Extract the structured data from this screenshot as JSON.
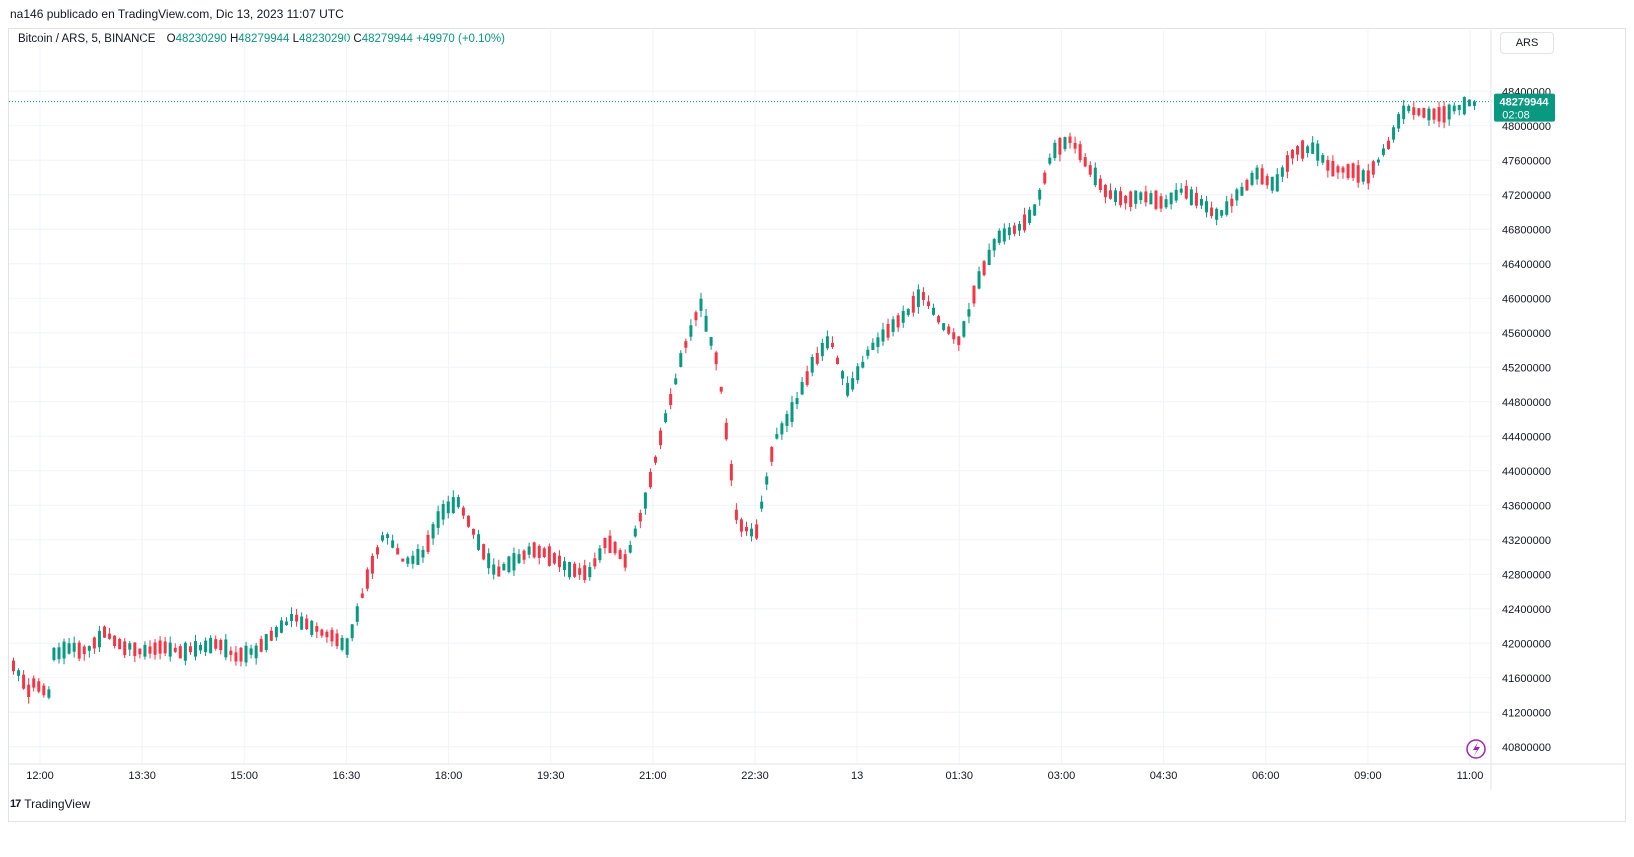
{
  "header": {
    "published": "na146 publicado en TradingView.com, Dic 13, 2023 11:07 UTC"
  },
  "legend": {
    "symbol": "Bitcoin / ARS, 5, BINANCE",
    "o_label": "O",
    "o_value": "48230290",
    "h_label": "H",
    "h_value": "48279944",
    "l_label": "L",
    "l_value": "48230290",
    "c_label": "C",
    "c_value": "48279944",
    "change": "+49970 (+0.10%)"
  },
  "currency_button": "ARS",
  "price_tag": {
    "price": "48279944",
    "countdown": "02:08"
  },
  "footer": {
    "brand": "TradingView",
    "logo_text": "17"
  },
  "colors": {
    "up": "#089981",
    "down": "#f23645",
    "grid": "#f0f3fa",
    "text": "#131722",
    "accent": "#9c27b0"
  },
  "icons": {
    "lightning": "lightning-icon"
  },
  "chart_data": {
    "type": "candlestick",
    "interval_minutes": 5,
    "ylim": [
      40600000,
      48600000
    ],
    "y_ticks": [
      40800000,
      41200000,
      41600000,
      42000000,
      42400000,
      42800000,
      43200000,
      43600000,
      44000000,
      44400000,
      44800000,
      45200000,
      45600000,
      46000000,
      46400000,
      46800000,
      47200000,
      47600000,
      48000000,
      48400000
    ],
    "x_tick_labels": [
      "12:00",
      "13:30",
      "15:00",
      "16:30",
      "18:00",
      "19:30",
      "21:00",
      "22:30",
      "13",
      "01:30",
      "03:00",
      "04:30",
      "06:00",
      "09:00",
      "11:00"
    ],
    "last_price": 48279944,
    "ohlc_anchors": [
      [
        41750000,
        41400000
      ],
      [
        41550000,
        41400000
      ],
      [
        41850000,
        41950000
      ],
      [
        41950000,
        41900000
      ],
      [
        41920000,
        42150000
      ],
      [
        42100000,
        41950000
      ],
      [
        41980000,
        41900000
      ],
      [
        41900000,
        41950000
      ],
      [
        41950000,
        41900000
      ],
      [
        41900000,
        41950000
      ],
      [
        41950000,
        42000000
      ],
      [
        42000000,
        41850000
      ],
      [
        41860000,
        41900000
      ],
      [
        41900000,
        42100000
      ],
      [
        42100000,
        42300000
      ],
      [
        42300000,
        42200000
      ],
      [
        42200000,
        42100000
      ],
      [
        42100000,
        41960000
      ],
      [
        41960000,
        42700000
      ],
      [
        42700000,
        43300000
      ],
      [
        43300000,
        42950000
      ],
      [
        42950000,
        43000000
      ],
      [
        43000000,
        43500000
      ],
      [
        43500000,
        43650000
      ],
      [
        43650000,
        43200000
      ],
      [
        43200000,
        42800000
      ],
      [
        42800000,
        42950000
      ],
      [
        42950000,
        43100000
      ],
      [
        43100000,
        43000000
      ],
      [
        43000000,
        42850000
      ],
      [
        42850000,
        42800000
      ],
      [
        42800000,
        43200000
      ],
      [
        43200000,
        42950000
      ],
      [
        42950000,
        43600000
      ],
      [
        43600000,
        44500000
      ],
      [
        44500000,
        45300000
      ],
      [
        45300000,
        45950000
      ],
      [
        45950000,
        45200000
      ],
      [
        45200000,
        43400000
      ],
      [
        43400000,
        43250000
      ],
      [
        43250000,
        44350000
      ],
      [
        44350000,
        44700000
      ],
      [
        44700000,
        45200000
      ],
      [
        45200000,
        45550000
      ],
      [
        45550000,
        44900000
      ],
      [
        44900000,
        45350000
      ],
      [
        45350000,
        45600000
      ],
      [
        45600000,
        45800000
      ],
      [
        45800000,
        46050000
      ],
      [
        46050000,
        45700000
      ],
      [
        45700000,
        45500000
      ],
      [
        45500000,
        46200000
      ],
      [
        46200000,
        46700000
      ],
      [
        46700000,
        46800000
      ],
      [
        46800000,
        47000000
      ],
      [
        47000000,
        47700000
      ],
      [
        47700000,
        47850000
      ],
      [
        47850000,
        47500000
      ],
      [
        47500000,
        47200000
      ],
      [
        47200000,
        47150000
      ],
      [
        47150000,
        47180000
      ],
      [
        47180000,
        47100000
      ],
      [
        47100000,
        47250000
      ],
      [
        47250000,
        47100000
      ],
      [
        47100000,
        46950000
      ],
      [
        46950000,
        47200000
      ],
      [
        47200000,
        47450000
      ],
      [
        47450000,
        47300000
      ],
      [
        47300000,
        47700000
      ],
      [
        47700000,
        47750000
      ],
      [
        47750000,
        47500000
      ],
      [
        47500000,
        47480000
      ],
      [
        47480000,
        47400000
      ],
      [
        47400000,
        47750000
      ],
      [
        47750000,
        48200000
      ],
      [
        48200000,
        48150000
      ],
      [
        48150000,
        48120000
      ],
      [
        48120000,
        48230290
      ],
      [
        48230290,
        48279944
      ]
    ]
  }
}
